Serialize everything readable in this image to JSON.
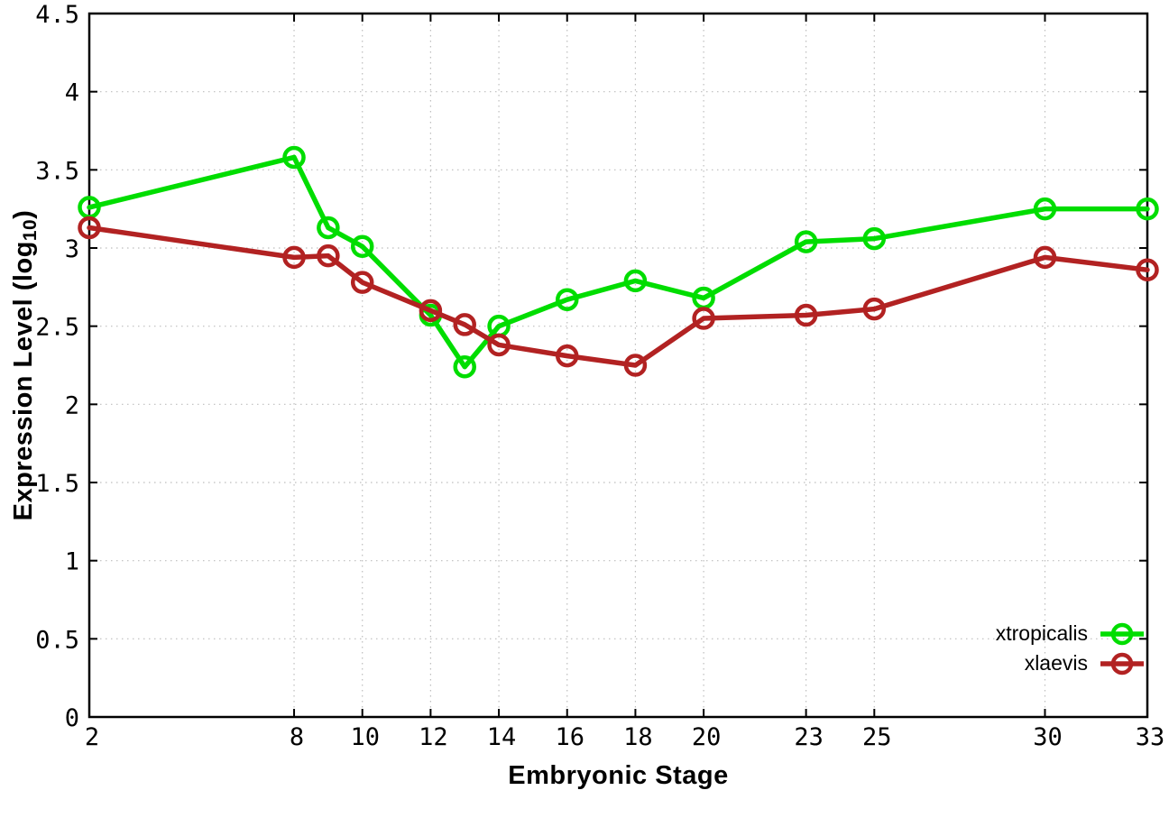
{
  "chart_data": {
    "type": "line",
    "title": "",
    "xlabel": "Embryonic Stage",
    "ylabel_main": "Expression Level (log",
    "ylabel_sub": "10",
    "ylabel_end": ")",
    "x": [
      2,
      8,
      9,
      10,
      12,
      13,
      14,
      16,
      18,
      20,
      23,
      25,
      30,
      33
    ],
    "series": [
      {
        "name": "xtropicalis",
        "color": "#00dd00",
        "values": [
          3.26,
          3.58,
          3.13,
          3.01,
          2.57,
          2.24,
          2.5,
          2.67,
          2.79,
          2.68,
          3.04,
          3.06,
          3.25,
          3.25
        ]
      },
      {
        "name": "xlaevis",
        "color": "#b22222",
        "values": [
          3.13,
          2.94,
          2.95,
          2.78,
          2.6,
          2.51,
          2.38,
          2.31,
          2.25,
          2.55,
          2.57,
          2.61,
          2.94,
          2.86
        ]
      }
    ],
    "xlim": [
      2,
      33
    ],
    "ylim": [
      0,
      4.5
    ],
    "x_ticks": [
      2,
      8,
      10,
      12,
      14,
      16,
      18,
      20,
      23,
      25,
      30,
      33
    ],
    "y_ticks": [
      0,
      0.5,
      1,
      1.5,
      2,
      2.5,
      3,
      3.5,
      4,
      4.5
    ],
    "grid": true,
    "legend_position": "bottom-right",
    "marker": "open-circle",
    "colors": {
      "grid": "#bdbdbd",
      "axis": "#000000",
      "text": "#000000",
      "background": "#ffffff"
    }
  }
}
